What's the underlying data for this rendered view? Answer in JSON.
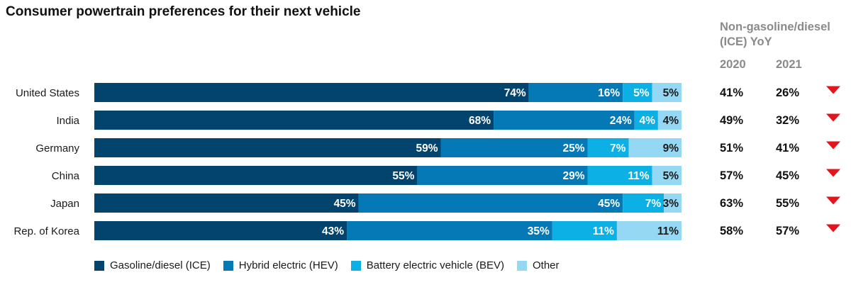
{
  "chart_data": {
    "type": "bar",
    "orientation": "horizontal-stacked",
    "title": "Consumer powertrain preferences for their next vehicle",
    "categories": [
      "United States",
      "India",
      "Germany",
      "China",
      "Japan",
      "Rep. of Korea"
    ],
    "series": [
      {
        "name": "Gasoline/diesel (ICE)",
        "color": "#02446e",
        "label_color": "#ffffff",
        "values": [
          74,
          68,
          59,
          55,
          45,
          43
        ]
      },
      {
        "name": "Hybrid electric (HEV)",
        "color": "#0479b5",
        "label_color": "#ffffff",
        "values": [
          16,
          24,
          25,
          29,
          45,
          35
        ]
      },
      {
        "name": "Battery electric vehicle (BEV)",
        "color": "#0db0e4",
        "label_color": "#ffffff",
        "values": [
          5,
          4,
          7,
          11,
          7,
          11
        ]
      },
      {
        "name": "Other",
        "color": "#94d8f3",
        "label_color": "#1a1a1a",
        "values": [
          5,
          4,
          9,
          5,
          3,
          11
        ]
      }
    ],
    "value_labels": [
      [
        "74%",
        "16%",
        "5%",
        "5%"
      ],
      [
        "68%",
        "24%",
        "4%",
        "4%"
      ],
      [
        "59%",
        "25%",
        "7%",
        "9%"
      ],
      [
        "55%",
        "29%",
        "11%",
        "5%"
      ],
      [
        "45%",
        "45%",
        "7%",
        "3%"
      ],
      [
        "43%",
        "35%",
        "11%",
        "11%"
      ]
    ],
    "xlim": [
      0,
      100
    ],
    "legend_position": "bottom-left",
    "yoy": {
      "heading": "Non-gasoline/diesel (ICE) YoY",
      "years": [
        "2020",
        "2021"
      ],
      "values_2020": [
        "41%",
        "49%",
        "51%",
        "57%",
        "63%",
        "58%"
      ],
      "values_2021": [
        "26%",
        "32%",
        "41%",
        "45%",
        "55%",
        "57%"
      ],
      "trend": [
        "down",
        "down",
        "down",
        "down",
        "down",
        "down"
      ],
      "trend_color": "#e3141c"
    }
  }
}
